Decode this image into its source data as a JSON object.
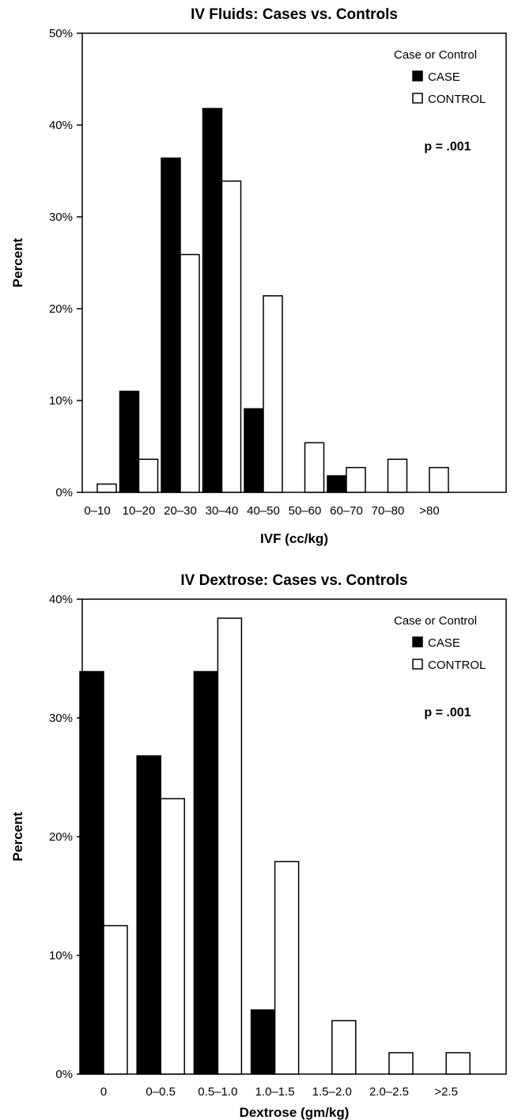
{
  "chart_data": [
    {
      "type": "bar",
      "title": "IV Fluids: Cases vs. Controls",
      "xlabel": "IVF (cc/kg)",
      "ylabel": "Percent",
      "ylim": [
        0,
        50
      ],
      "yticks": [
        "0%",
        "10%",
        "20%",
        "30%",
        "40%",
        "50%"
      ],
      "categories": [
        "0–10",
        "10–20",
        "20–30",
        "30–40",
        "40–50",
        "50–60",
        "60–70",
        "70–80",
        ">80"
      ],
      "series": [
        {
          "name": "CASE",
          "color": "#000000",
          "values": [
            0,
            11,
            36.4,
            41.8,
            9.1,
            0,
            1.8,
            0,
            0
          ]
        },
        {
          "name": "CONTROL",
          "color": "#ffffff",
          "values": [
            0.9,
            3.6,
            25.9,
            33.9,
            21.4,
            5.4,
            2.7,
            3.6,
            2.7
          ]
        }
      ],
      "legend": {
        "title": "Case or Control",
        "position": "top-right"
      },
      "annotation": "p = .001",
      "grid": false
    },
    {
      "type": "bar",
      "title": "IV Dextrose: Cases vs. Controls",
      "xlabel": "Dextrose (gm/kg)",
      "ylabel": "Percent",
      "ylim": [
        0,
        40
      ],
      "yticks": [
        "0%",
        "10%",
        "20%",
        "30%",
        "40%"
      ],
      "categories": [
        "0",
        "0–0.5",
        "0.5–1.0",
        "1.0–1.5",
        "1.5–2.0",
        "2.0–2.5",
        ">2.5"
      ],
      "series": [
        {
          "name": "CASE",
          "color": "#000000",
          "values": [
            33.9,
            26.8,
            33.9,
            5.4,
            0,
            0,
            0
          ]
        },
        {
          "name": "CONTROL",
          "color": "#ffffff",
          "values": [
            12.5,
            23.2,
            38.4,
            17.9,
            4.5,
            1.8,
            1.8
          ]
        }
      ],
      "legend": {
        "title": "Case or Control",
        "position": "top-right"
      },
      "annotation": "p = .001",
      "grid": false
    }
  ]
}
